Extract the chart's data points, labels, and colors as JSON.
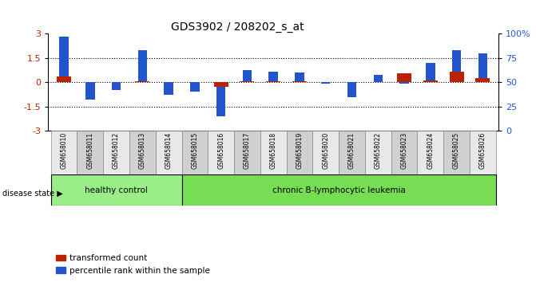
{
  "title": "GDS3902 / 208202_s_at",
  "samples": [
    "GSM658010",
    "GSM658011",
    "GSM658012",
    "GSM658013",
    "GSM658014",
    "GSM658015",
    "GSM658016",
    "GSM658017",
    "GSM658018",
    "GSM658019",
    "GSM658020",
    "GSM658021",
    "GSM658022",
    "GSM658023",
    "GSM658024",
    "GSM658025",
    "GSM658026"
  ],
  "red_values": [
    0.35,
    0.0,
    0.0,
    0.08,
    0.0,
    0.0,
    -0.3,
    0.08,
    0.08,
    0.08,
    0.0,
    0.0,
    0.0,
    0.55,
    0.12,
    0.65,
    0.28
  ],
  "blue_values_pct": [
    97,
    32,
    42,
    83,
    37,
    40,
    15,
    63,
    61,
    60,
    49,
    35,
    58,
    49,
    70,
    83,
    80
  ],
  "healthy_control_count": 5,
  "healthy_label": "healthy control",
  "disease_label": "chronic B-lymphocytic leukemia",
  "disease_state_label": "disease state",
  "legend_red": "transformed count",
  "legend_blue": "percentile rank within the sample",
  "ylim_left": [
    -3,
    3
  ],
  "yticks_left": [
    -3,
    -1.5,
    0,
    1.5,
    3
  ],
  "yticks_right": [
    0,
    25,
    50,
    75,
    100
  ],
  "ylim_right": [
    0,
    100
  ],
  "red_color": "#bb2200",
  "blue_color": "#2255cc",
  "bg_color": "#ffffff",
  "healthy_color": "#99ee88",
  "disease_color": "#77dd55",
  "red_bar_width": 0.55,
  "blue_bar_width": 0.35
}
